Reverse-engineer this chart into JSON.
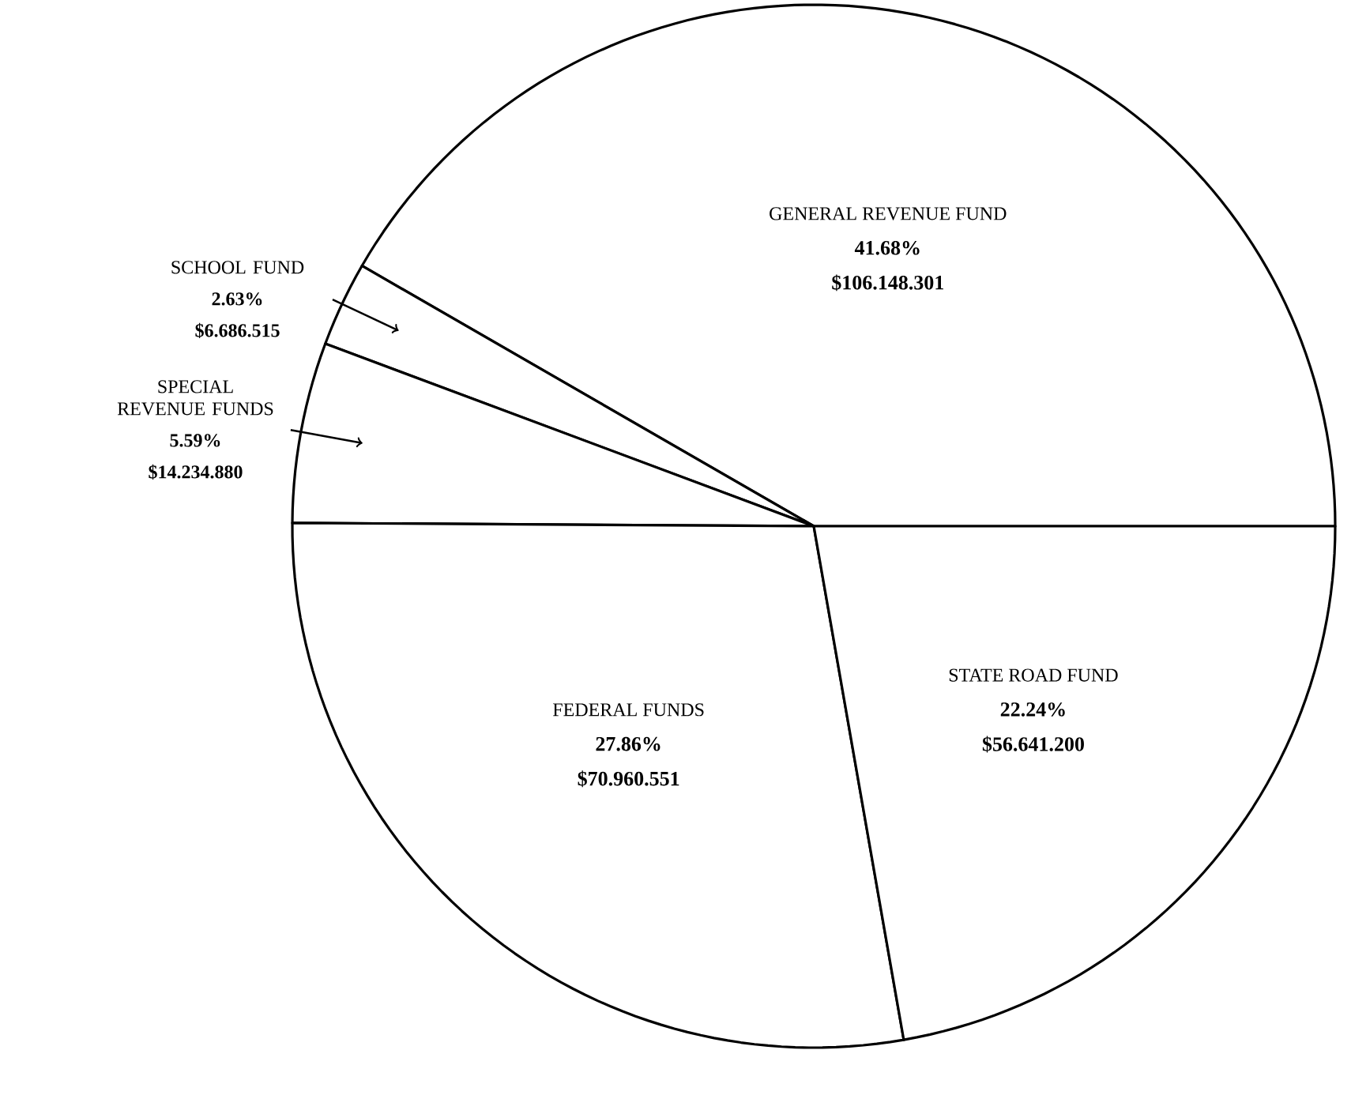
{
  "chart_data": {
    "type": "pie",
    "categories": [
      "GENERAL REVENUE FUND",
      "SCHOOL FUND",
      "SPECIAL REVENUE FUNDS",
      "FEDERAL FUNDS",
      "STATE ROAD FUND"
    ],
    "values": [
      41.68,
      2.63,
      5.59,
      27.86,
      22.24
    ],
    "value_labels": [
      "41.68%",
      "2.63%",
      "5.59%",
      "27.86%",
      "22.24%"
    ],
    "annotations": [
      "$106.148.301",
      "$6.686.515",
      "$14.234.880",
      "$70.960.551",
      "$56.641.200"
    ],
    "colors": [
      "#ffffff",
      "#ffffff",
      "#ffffff",
      "#ffffff",
      "#ffffff"
    ]
  }
}
